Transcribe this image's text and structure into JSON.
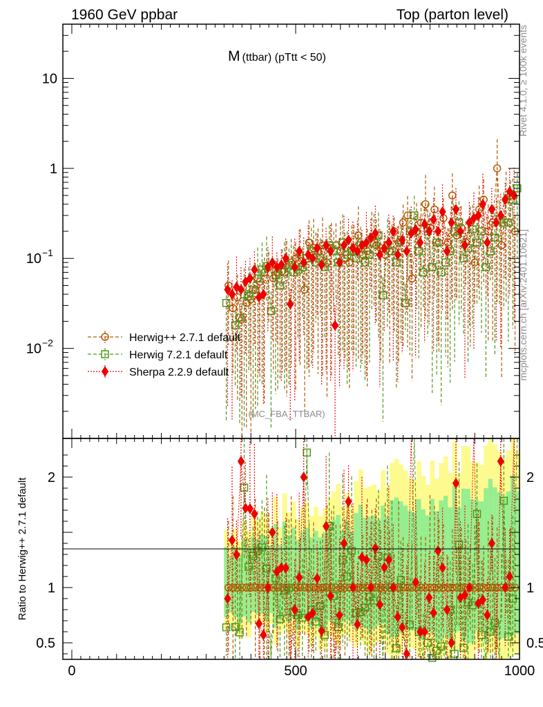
{
  "header": {
    "left": "1960 GeV ppbar",
    "right": "Top (parton level)"
  },
  "side": {
    "rivet": "Rivet 4.1.0, ≥ 100k events",
    "mcplots": "mcplots.cern.ch [arXiv:2401.10621]"
  },
  "chart_data": {
    "type": "line",
    "title_main": "M",
    "title_sub": "(ttbar) (pTtt < 50)",
    "analysis_label": "(MC_FBA_TTBAR)",
    "xlabel": "",
    "ylabel_ratio": "Ratio to Herwig++ 2.7.1 default",
    "xlim": [
      -20,
      1000
    ],
    "ylim_main": [
      0.001,
      40
    ],
    "ylim_ratio": [
      0.35,
      2.35
    ],
    "yscale_main": "log",
    "x_ticks": [
      {
        "value": 0,
        "label": "0"
      },
      {
        "value": 500,
        "label": "500"
      },
      {
        "value": 1000,
        "label": "1000"
      }
    ],
    "main_y_ticks": [
      {
        "value": 10,
        "label": "10"
      },
      {
        "value": 1,
        "label": "1"
      },
      {
        "value": 0.1,
        "label": "10",
        "exp": "−1"
      },
      {
        "value": 0.01,
        "label": "10",
        "exp": "−2"
      }
    ],
    "ratio_y_ticks": [
      {
        "value": 2,
        "label": "2"
      },
      {
        "value": 1,
        "label": "1"
      },
      {
        "value": 0.5,
        "label": "0.5"
      }
    ],
    "legend_position": "middle-left",
    "series": [
      {
        "name": "Herwig++ 2.7.1 default",
        "color": "#b35a00",
        "marker": "circle",
        "line": "dashed",
        "x": [
          350,
          360,
          370,
          380,
          390,
          400,
          410,
          420,
          430,
          440,
          450,
          460,
          470,
          480,
          490,
          500,
          510,
          520,
          530,
          540,
          550,
          560,
          570,
          580,
          590,
          600,
          610,
          620,
          630,
          640,
          650,
          660,
          670,
          680,
          690,
          700,
          710,
          720,
          730,
          740,
          750,
          760,
          770,
          780,
          790,
          800,
          810,
          820,
          830,
          840,
          850,
          860,
          870,
          880,
          890,
          900,
          910,
          920,
          930,
          940,
          950,
          960,
          970,
          980,
          990
        ],
        "y": [
          0.05,
          0.028,
          0.037,
          0.021,
          0.032,
          0.035,
          0.045,
          0.055,
          0.07,
          0.08,
          0.06,
          0.07,
          0.072,
          0.085,
          0.09,
          0.1,
          0.11,
          0.045,
          0.15,
          0.13,
          0.12,
          0.14,
          0.09,
          0.13,
          0.14,
          0.12,
          0.1,
          0.09,
          0.13,
          0.18,
          0.11,
          0.12,
          0.17,
          0.14,
          0.13,
          0.11,
          0.12,
          0.2,
          0.15,
          0.25,
          0.3,
          0.06,
          0.2,
          0.25,
          0.4,
          0.22,
          0.35,
          0.15,
          0.28,
          0.15,
          0.5,
          0.18,
          0.22,
          0.15,
          0.25,
          0.09,
          0.35,
          0.45,
          0.2,
          0.25,
          1.0,
          0.14,
          0.45,
          0.5,
          0.2
        ]
      },
      {
        "name": "Herwig 7.2.1 default",
        "color": "#4a9a1a",
        "marker": "square",
        "line": "dashed",
        "x": [
          345,
          365,
          375,
          385,
          395,
          405,
          415,
          425,
          435,
          445,
          455,
          465,
          475,
          485,
          495,
          505,
          515,
          525,
          535,
          545,
          555,
          565,
          575,
          585,
          595,
          605,
          615,
          625,
          635,
          645,
          655,
          665,
          675,
          685,
          695,
          705,
          715,
          725,
          735,
          745,
          755,
          765,
          775,
          785,
          795,
          805,
          815,
          825,
          835,
          845,
          855,
          865,
          875,
          885,
          895,
          905,
          915,
          925,
          935,
          945,
          955,
          965,
          975,
          985,
          995
        ],
        "y": [
          0.032,
          0.018,
          0.022,
          0.04,
          0.038,
          0.045,
          0.06,
          0.075,
          0.082,
          0.026,
          0.065,
          0.05,
          0.07,
          0.085,
          0.07,
          0.075,
          0.08,
          0.1,
          0.12,
          0.09,
          0.1,
          0.08,
          0.14,
          0.12,
          0.09,
          0.15,
          0.11,
          0.12,
          0.1,
          0.14,
          0.09,
          0.11,
          0.15,
          0.18,
          0.039,
          0.14,
          0.12,
          0.09,
          0.16,
          0.032,
          0.2,
          0.3,
          0.12,
          0.07,
          0.2,
          0.08,
          0.15,
          0.07,
          0.09,
          0.12,
          0.2,
          0.25,
          0.1,
          0.13,
          0.21,
          0.15,
          0.2,
          0.08,
          0.12,
          0.17,
          0.27,
          0.25,
          0.25,
          0.45,
          0.6
        ]
      },
      {
        "name": "Sherpa 2.2.9 default",
        "color": "#ee0000",
        "marker": "diamond",
        "line": "dotted",
        "x": [
          348,
          358,
          368,
          378,
          388,
          398,
          408,
          418,
          428,
          438,
          448,
          458,
          468,
          478,
          488,
          498,
          508,
          518,
          528,
          538,
          548,
          558,
          568,
          578,
          588,
          598,
          608,
          618,
          628,
          638,
          648,
          658,
          668,
          678,
          688,
          698,
          708,
          718,
          728,
          738,
          748,
          758,
          768,
          778,
          788,
          798,
          808,
          818,
          828,
          838,
          848,
          858,
          868,
          878,
          888,
          898,
          908,
          918,
          928,
          938,
          948,
          958,
          968,
          978,
          988
        ],
        "y": [
          0.045,
          0.04,
          0.048,
          0.045,
          0.055,
          0.06,
          0.075,
          0.037,
          0.04,
          0.08,
          0.09,
          0.08,
          0.085,
          0.1,
          0.031,
          0.08,
          0.12,
          0.09,
          0.11,
          0.1,
          0.13,
          0.085,
          0.14,
          0.12,
          0.018,
          0.09,
          0.14,
          0.16,
          0.13,
          0.12,
          0.14,
          0.15,
          0.17,
          0.19,
          0.11,
          0.13,
          0.15,
          0.2,
          0.11,
          0.16,
          0.12,
          0.19,
          0.21,
          0.15,
          0.24,
          0.2,
          0.27,
          0.2,
          0.33,
          0.12,
          0.25,
          0.35,
          0.2,
          0.14,
          0.25,
          0.28,
          0.3,
          0.4,
          0.15,
          0.35,
          0.25,
          0.3,
          0.45,
          0.55,
          0.5
        ]
      }
    ]
  }
}
